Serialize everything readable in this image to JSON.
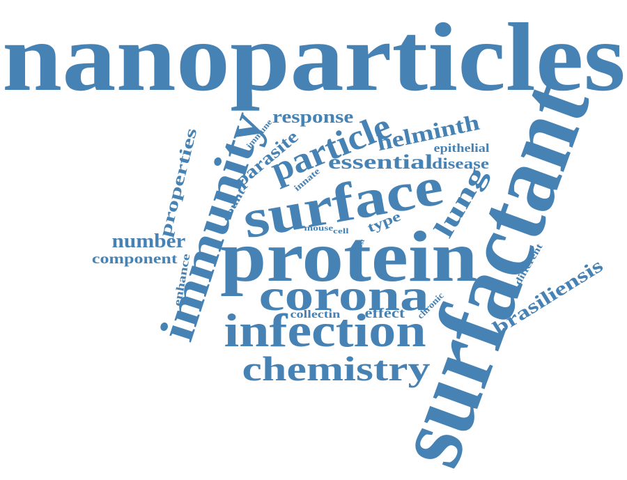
{
  "cloud": {
    "color": "#4682b4",
    "words": [
      {
        "id": "nanoparticles",
        "text": "nanoparticles"
      },
      {
        "id": "surfactant",
        "text": "surfactant"
      },
      {
        "id": "protein",
        "text": "protein"
      },
      {
        "id": "surface",
        "text": "surface"
      },
      {
        "id": "immunity",
        "text": "immunity"
      },
      {
        "id": "infection",
        "text": "infection"
      },
      {
        "id": "corona",
        "text": "corona"
      },
      {
        "id": "chemistry",
        "text": "chemistry"
      },
      {
        "id": "particle",
        "text": "particle"
      },
      {
        "id": "essential",
        "text": "essential"
      },
      {
        "id": "lung",
        "text": "lung"
      },
      {
        "id": "helminth",
        "text": "helminth"
      },
      {
        "id": "brasiliensis",
        "text": "brasiliensis"
      },
      {
        "id": "properties",
        "text": "properties"
      },
      {
        "id": "parasite",
        "text": "parasite"
      },
      {
        "id": "number",
        "text": "number"
      },
      {
        "id": "response",
        "text": "response"
      },
      {
        "id": "component",
        "text": "component"
      },
      {
        "id": "disease",
        "text": "disease"
      },
      {
        "id": "epithelial",
        "text": "epithelial"
      },
      {
        "id": "effect",
        "text": "effect"
      },
      {
        "id": "type",
        "text": "type"
      },
      {
        "id": "collectin",
        "text": "collectin"
      },
      {
        "id": "enhance",
        "text": "enhance"
      },
      {
        "id": "different",
        "text": "different"
      },
      {
        "id": "count",
        "text": "count"
      },
      {
        "id": "innate",
        "text": "innate"
      },
      {
        "id": "immune",
        "text": "immune"
      },
      {
        "id": "mouse",
        "text": "mouse"
      },
      {
        "id": "chronic",
        "text": "chronic"
      },
      {
        "id": "cell",
        "text": "cell"
      },
      {
        "id": "host",
        "text": "host"
      }
    ]
  }
}
